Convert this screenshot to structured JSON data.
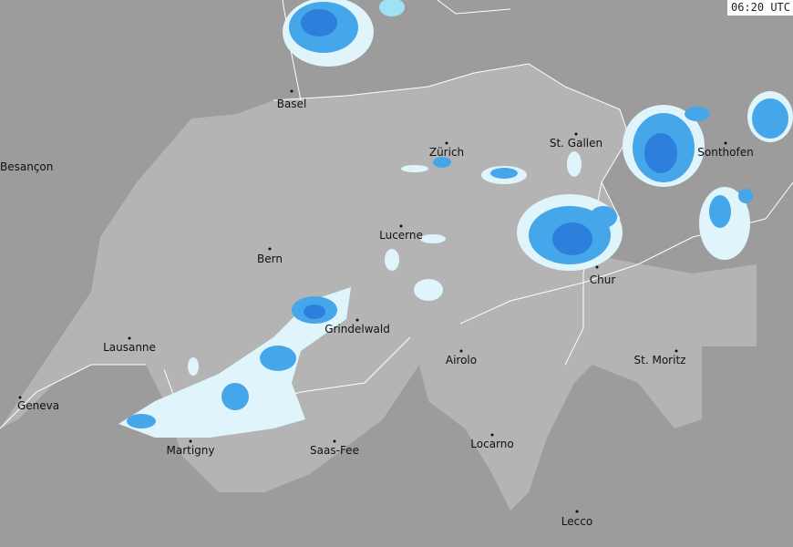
{
  "timestamp": "06:20 UTC",
  "colors": {
    "background": "#9c9c9c",
    "country": "#b4b4b4",
    "border": "#ffffff",
    "precip_light": "#dff4fb",
    "precip_low": "#9fe2f5",
    "precip_moderate": "#46a6ea",
    "precip_heavy": "#2c80dc"
  },
  "cities": [
    {
      "name": "Basel"
    },
    {
      "name": "Besançon"
    },
    {
      "name": "Zürich"
    },
    {
      "name": "St. Gallen"
    },
    {
      "name": "Sonthofen"
    },
    {
      "name": "Lucerne"
    },
    {
      "name": "Bern"
    },
    {
      "name": "Chur"
    },
    {
      "name": "Grindelwald"
    },
    {
      "name": "Lausanne"
    },
    {
      "name": "Airolo"
    },
    {
      "name": "St. Moritz"
    },
    {
      "name": "Geneva"
    },
    {
      "name": "Martigny"
    },
    {
      "name": "Saas-Fee"
    },
    {
      "name": "Locarno"
    },
    {
      "name": "Lecco"
    }
  ]
}
